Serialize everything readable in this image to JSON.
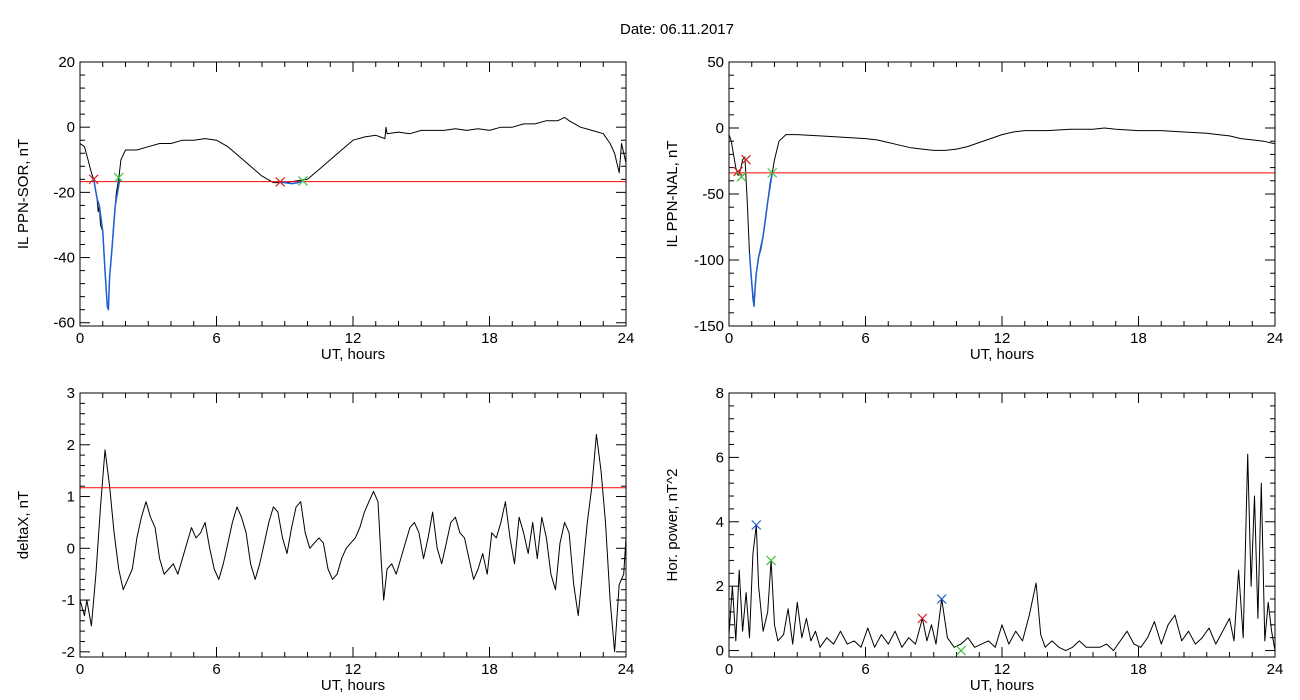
{
  "figure": {
    "title": "Date:  06.11.2017"
  },
  "colors": {
    "axis": "#000000",
    "trace": "#000000",
    "threshold": "#ff0000",
    "highlight": "#1f5fd6",
    "marker_red": "#d62020",
    "marker_green": "#3cc23c",
    "marker_blue": "#1f5fd6"
  },
  "chart_data": [
    {
      "id": "sor",
      "type": "line",
      "title": "",
      "xlabel": "UT, hours",
      "ylabel": "IL PPN-SOR, nT",
      "xlim": [
        0,
        24
      ],
      "ylim": [
        -61,
        20
      ],
      "xticks": [
        0,
        6,
        12,
        18,
        24
      ],
      "yticks": [
        20,
        0,
        -20,
        -40,
        -60
      ],
      "grid": false,
      "series": [
        {
          "role": "trace",
          "x": [
            0,
            0.2,
            0.35,
            0.5,
            0.6,
            0.65,
            0.75,
            0.8,
            0.85,
            0.9,
            1.0,
            1.05,
            1.1,
            1.15,
            1.2,
            1.25,
            1.3,
            1.4,
            1.5,
            1.6,
            1.7,
            1.8,
            2,
            2.5,
            3,
            3.5,
            4,
            4.5,
            5,
            5.5,
            6,
            6.5,
            7,
            7.5,
            8,
            8.5,
            9,
            9.5,
            10,
            10.5,
            11,
            11.5,
            12,
            12.5,
            13,
            13.4,
            13.45,
            13.5,
            14,
            14.5,
            15,
            15.5,
            16,
            16.5,
            17,
            17.5,
            18,
            18.5,
            19,
            19.5,
            20,
            20.5,
            21,
            21.3,
            21.5,
            22,
            22.5,
            23,
            23.3,
            23.5,
            23.7,
            23.8,
            24
          ],
          "y": [
            -5,
            -6,
            -10,
            -14,
            -16,
            -18,
            -22,
            -26,
            -24,
            -30,
            -32,
            -38,
            -44,
            -50,
            -55,
            -56,
            -46,
            -38,
            -28,
            -20,
            -16,
            -10,
            -7,
            -7,
            -6,
            -5,
            -5,
            -4,
            -4,
            -3.5,
            -4,
            -6,
            -9,
            -12,
            -15,
            -17,
            -17,
            -16.5,
            -16,
            -13,
            -10,
            -7,
            -4,
            -3,
            -2.5,
            -3.5,
            0,
            -2,
            -1.5,
            -2,
            -1,
            -1,
            -1,
            -0.5,
            -1,
            -0.5,
            -1,
            0,
            0,
            1,
            1,
            2,
            2,
            3,
            2,
            0,
            -1,
            -2,
            -5,
            -8,
            -14,
            -5,
            -11
          ]
        },
        {
          "role": "threshold",
          "x": [
            0,
            24
          ],
          "y": [
            -16.7,
            -16.7
          ]
        },
        {
          "role": "highlight",
          "x": [
            0.6,
            0.75,
            0.85,
            1.0,
            1.1,
            1.2,
            1.25,
            1.3,
            1.4,
            1.55,
            1.75
          ],
          "y": [
            -16,
            -22,
            -24,
            -32,
            -44,
            -55,
            -56,
            -46,
            -38,
            -24,
            -16
          ]
        },
        {
          "role": "highlight",
          "x": [
            8.8,
            9.0,
            9.3,
            9.6,
            9.8
          ],
          "y": [
            -16.7,
            -17,
            -17.3,
            -17,
            -16.5
          ]
        }
      ],
      "markers": [
        {
          "color": "red",
          "x": 0.6,
          "y": -16
        },
        {
          "color": "green",
          "x": 1.7,
          "y": -15.5
        },
        {
          "color": "red",
          "x": 8.8,
          "y": -16.8
        },
        {
          "color": "green",
          "x": 9.8,
          "y": -16.5
        }
      ]
    },
    {
      "id": "nal",
      "type": "line",
      "title": "",
      "xlabel": "UT, hours",
      "ylabel": "IL PPN-NAL, nT",
      "xlim": [
        0,
        24
      ],
      "ylim": [
        -150,
        50
      ],
      "xticks": [
        0,
        6,
        12,
        18,
        24
      ],
      "yticks": [
        50,
        0,
        -50,
        -100,
        -150
      ],
      "grid": false,
      "series": [
        {
          "role": "trace",
          "x": [
            0,
            0.1,
            0.2,
            0.3,
            0.4,
            0.5,
            0.6,
            0.7,
            0.8,
            0.9,
            1.0,
            1.05,
            1.1,
            1.15,
            1.2,
            1.3,
            1.4,
            1.5,
            1.6,
            1.7,
            1.8,
            1.9,
            2.0,
            2.2,
            2.5,
            3,
            4,
            5,
            6,
            6.5,
            7,
            7.5,
            8,
            8.5,
            9,
            9.5,
            10,
            10.5,
            11,
            11.5,
            12,
            12.5,
            13,
            14,
            15,
            16,
            16.5,
            17,
            18,
            19,
            20,
            21,
            21.5,
            22,
            22.5,
            23,
            23.5,
            24
          ],
          "y": [
            -5,
            -10,
            -20,
            -30,
            -36,
            -32,
            -24,
            -22,
            -55,
            -95,
            -118,
            -130,
            -135,
            -120,
            -110,
            -98,
            -92,
            -82,
            -70,
            -56,
            -42,
            -34,
            -24,
            -10,
            -5,
            -5,
            -6,
            -7,
            -8,
            -9,
            -11,
            -13,
            -15,
            -16,
            -17,
            -17,
            -16,
            -14,
            -11,
            -8,
            -5,
            -3,
            -2,
            -2,
            -1,
            -1,
            0,
            -1,
            -2,
            -2,
            -3,
            -4,
            -5,
            -6,
            -8,
            -9,
            -10,
            -12
          ]
        },
        {
          "role": "threshold",
          "x": [
            0,
            24
          ],
          "y": [
            -34,
            -34
          ]
        },
        {
          "role": "highlight",
          "x": [
            0.9,
            1.0,
            1.1,
            1.15,
            1.2,
            1.3,
            1.5,
            1.7,
            1.9
          ],
          "y": [
            -95,
            -118,
            -135,
            -120,
            -110,
            -98,
            -82,
            -56,
            -34
          ]
        }
      ],
      "markers": [
        {
          "color": "red",
          "x": 0.4,
          "y": -33
        },
        {
          "color": "green",
          "x": 0.55,
          "y": -37
        },
        {
          "color": "red",
          "x": 0.75,
          "y": -24
        },
        {
          "color": "green",
          "x": 1.9,
          "y": -34
        }
      ]
    },
    {
      "id": "deltax",
      "type": "line",
      "title": "",
      "xlabel": "UT, hours",
      "ylabel": "deltaX, nT",
      "xlim": [
        0,
        24
      ],
      "ylim": [
        -2.1,
        3
      ],
      "xticks": [
        0,
        6,
        12,
        18,
        24
      ],
      "yticks": [
        3,
        2,
        1,
        0,
        -1,
        -2
      ],
      "grid": false,
      "series": [
        {
          "role": "trace",
          "x": [
            0,
            0.2,
            0.3,
            0.5,
            0.7,
            0.9,
            1.1,
            1.3,
            1.5,
            1.7,
            1.9,
            2.1,
            2.3,
            2.5,
            2.7,
            2.9,
            3.1,
            3.3,
            3.5,
            3.7,
            3.9,
            4.1,
            4.3,
            4.5,
            4.7,
            4.9,
            5.1,
            5.3,
            5.5,
            5.7,
            5.9,
            6.1,
            6.3,
            6.5,
            6.7,
            6.9,
            7.1,
            7.3,
            7.5,
            7.7,
            7.9,
            8.1,
            8.3,
            8.5,
            8.7,
            8.9,
            9.1,
            9.3,
            9.5,
            9.7,
            9.9,
            10.1,
            10.3,
            10.5,
            10.7,
            10.9,
            11.1,
            11.3,
            11.5,
            11.7,
            11.9,
            12.1,
            12.3,
            12.5,
            12.7,
            12.9,
            13.1,
            13.25,
            13.35,
            13.5,
            13.7,
            13.9,
            14.1,
            14.3,
            14.5,
            14.7,
            14.9,
            15.1,
            15.3,
            15.5,
            15.7,
            15.9,
            16.1,
            16.3,
            16.5,
            16.7,
            16.9,
            17.1,
            17.3,
            17.5,
            17.7,
            17.9,
            18.1,
            18.3,
            18.5,
            18.7,
            18.9,
            19.1,
            19.3,
            19.5,
            19.7,
            19.9,
            20.1,
            20.3,
            20.5,
            20.7,
            20.9,
            21.1,
            21.3,
            21.5,
            21.7,
            21.9,
            22.1,
            22.3,
            22.5,
            22.7,
            22.9,
            23.1,
            23.3,
            23.5,
            23.7,
            23.9,
            24
          ],
          "y": [
            -1.0,
            -1.3,
            -1.0,
            -1.5,
            -0.5,
            0.8,
            1.9,
            1.2,
            0.3,
            -0.4,
            -0.8,
            -0.6,
            -0.4,
            0.2,
            0.6,
            0.9,
            0.6,
            0.4,
            -0.2,
            -0.5,
            -0.4,
            -0.3,
            -0.5,
            -0.2,
            0.1,
            0.4,
            0.2,
            0.3,
            0.5,
            0.0,
            -0.4,
            -0.6,
            -0.3,
            0.1,
            0.5,
            0.8,
            0.6,
            0.3,
            -0.3,
            -0.6,
            -0.3,
            0.1,
            0.5,
            0.8,
            0.7,
            0.2,
            -0.1,
            0.4,
            0.8,
            0.9,
            0.3,
            0.0,
            0.1,
            0.2,
            0.1,
            -0.4,
            -0.6,
            -0.5,
            -0.2,
            0.0,
            0.1,
            0.2,
            0.4,
            0.7,
            0.9,
            1.1,
            0.9,
            -0.3,
            -1.0,
            -0.4,
            -0.3,
            -0.5,
            -0.2,
            0.1,
            0.4,
            0.5,
            0.3,
            -0.2,
            0.2,
            0.7,
            0.0,
            -0.3,
            0.1,
            0.5,
            0.6,
            0.3,
            0.2,
            -0.2,
            -0.6,
            -0.4,
            -0.1,
            -0.5,
            0.3,
            0.2,
            0.5,
            0.9,
            0.2,
            -0.3,
            0.6,
            0.3,
            -0.1,
            0.5,
            -0.2,
            0.6,
            0.2,
            -0.5,
            -0.8,
            0.1,
            0.5,
            0.3,
            -0.7,
            -1.3,
            -0.4,
            0.5,
            1.2,
            2.2,
            1.5,
            0.5,
            -1.0,
            -2.0,
            -0.7,
            -0.5,
            0.2
          ]
        },
        {
          "role": "threshold",
          "x": [
            0,
            24
          ],
          "y": [
            1.17,
            1.17
          ]
        }
      ],
      "markers": []
    },
    {
      "id": "power",
      "type": "line",
      "title": "",
      "xlabel": "UT, hours",
      "ylabel": "Hor. power, nT^2",
      "xlim": [
        0,
        24
      ],
      "ylim": [
        -0.2,
        8
      ],
      "xticks": [
        0,
        6,
        12,
        18,
        24
      ],
      "yticks": [
        8,
        6,
        4,
        2,
        0
      ],
      "grid": false,
      "series": [
        {
          "role": "trace",
          "x": [
            0,
            0.15,
            0.3,
            0.45,
            0.6,
            0.75,
            0.9,
            1.05,
            1.2,
            1.3,
            1.5,
            1.7,
            1.85,
            2.0,
            2.15,
            2.4,
            2.6,
            2.8,
            3.0,
            3.2,
            3.4,
            3.6,
            3.8,
            4.0,
            4.3,
            4.6,
            4.9,
            5.2,
            5.5,
            5.8,
            6.1,
            6.4,
            6.7,
            7.0,
            7.3,
            7.6,
            7.9,
            8.2,
            8.5,
            8.7,
            8.9,
            9.1,
            9.35,
            9.6,
            9.9,
            10.2,
            10.5,
            10.8,
            11.1,
            11.4,
            11.7,
            12.0,
            12.3,
            12.6,
            12.9,
            13.2,
            13.5,
            13.7,
            13.9,
            14.2,
            14.5,
            14.8,
            15.1,
            15.4,
            15.7,
            16.0,
            16.3,
            16.6,
            16.9,
            17.2,
            17.5,
            17.8,
            18.1,
            18.4,
            18.7,
            19.0,
            19.3,
            19.6,
            19.9,
            20.2,
            20.5,
            20.8,
            21.1,
            21.4,
            21.7,
            22.0,
            22.2,
            22.4,
            22.6,
            22.8,
            22.95,
            23.1,
            23.25,
            23.4,
            23.55,
            23.7,
            23.85,
            24
          ],
          "y": [
            0.5,
            2.0,
            0.3,
            2.5,
            0.6,
            1.8,
            0.4,
            3.0,
            3.9,
            2.0,
            0.6,
            1.2,
            2.8,
            0.8,
            0.3,
            0.5,
            1.3,
            0.2,
            1.5,
            0.4,
            1.0,
            0.3,
            0.6,
            0.1,
            0.4,
            0.2,
            0.6,
            0.2,
            0.3,
            0.1,
            0.7,
            0.1,
            0.5,
            0.2,
            0.6,
            0.1,
            0.4,
            0.2,
            1.0,
            0.3,
            0.8,
            0.2,
            1.6,
            0.4,
            0.1,
            0.2,
            0.4,
            0.1,
            0.2,
            0.3,
            0.1,
            0.8,
            0.2,
            0.6,
            0.3,
            1.1,
            2.1,
            0.5,
            0.1,
            0.3,
            0.1,
            0.0,
            0.1,
            0.3,
            0.1,
            0.1,
            0.1,
            0.2,
            0.0,
            0.3,
            0.6,
            0.2,
            0.1,
            0.4,
            0.9,
            0.2,
            0.8,
            1.1,
            0.3,
            0.6,
            0.2,
            0.4,
            0.7,
            0.2,
            0.6,
            1.0,
            0.3,
            2.5,
            0.4,
            6.1,
            2.0,
            4.8,
            1.0,
            5.2,
            0.3,
            1.5,
            0.6,
            0.0
          ]
        }
      ],
      "markers": [
        {
          "color": "blue",
          "x": 1.2,
          "y": 3.9
        },
        {
          "color": "green",
          "x": 1.85,
          "y": 2.8
        },
        {
          "color": "red",
          "x": 8.5,
          "y": 1.0
        },
        {
          "color": "blue",
          "x": 9.35,
          "y": 1.6
        },
        {
          "color": "green",
          "x": 10.2,
          "y": 0.0
        }
      ]
    }
  ]
}
